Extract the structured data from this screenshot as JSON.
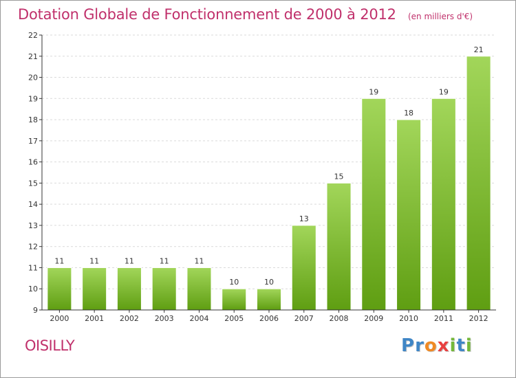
{
  "colors": {
    "title": "#c0306b",
    "bar_top": "#a2d65a",
    "bar_bottom": "#5f9e12",
    "grid": "#d9d9d9",
    "axis": "#333333"
  },
  "chart_data": {
    "type": "bar",
    "title": "Dotation Globale de Fonctionnement de 2000 à 2012",
    "subtitle": "(en milliers d'€)",
    "xlabel": "",
    "ylabel": "",
    "categories": [
      "2000",
      "2001",
      "2002",
      "2003",
      "2004",
      "2005",
      "2006",
      "2007",
      "2008",
      "2009",
      "2010",
      "2011",
      "2012"
    ],
    "values": [
      11,
      11,
      11,
      11,
      11,
      10,
      10,
      13,
      15,
      19,
      18,
      19,
      21
    ],
    "ylim": [
      9,
      22
    ],
    "yticks": [
      9,
      10,
      11,
      12,
      13,
      14,
      15,
      16,
      17,
      18,
      19,
      20,
      21,
      22
    ],
    "grid": true,
    "data_labels": true
  },
  "footer": {
    "commune": "OISILLY",
    "brand": {
      "letters": [
        {
          "char": "P",
          "color": "#3f86c6"
        },
        {
          "char": "r",
          "color": "#3f86c6"
        },
        {
          "char": "o",
          "color": "#f08a24"
        },
        {
          "char": "x",
          "color": "#e84040"
        },
        {
          "char": "i",
          "color": "#74b83a"
        },
        {
          "char": "t",
          "color": "#3f86c6"
        },
        {
          "char": "i",
          "color": "#74b83a"
        }
      ]
    }
  }
}
